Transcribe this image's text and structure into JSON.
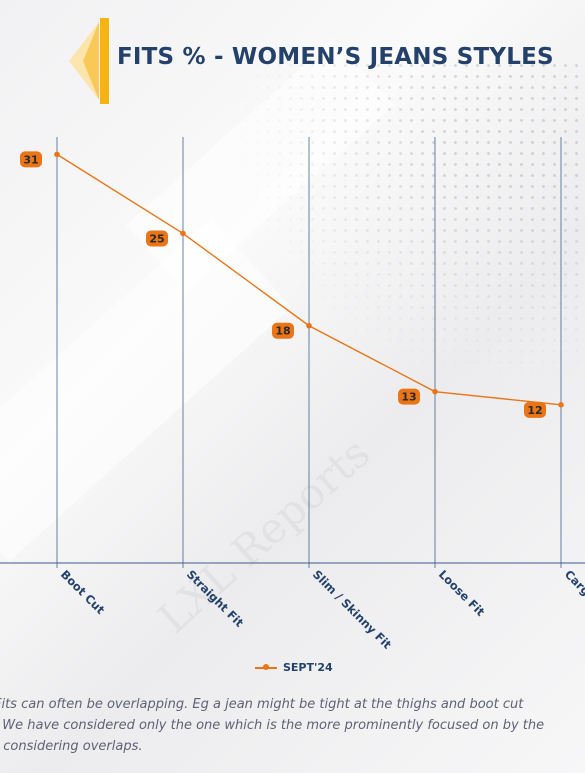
{
  "title": "FITS % - WOMEN’S JEANS STYLES",
  "chart_data": {
    "type": "line",
    "categories": [
      "Boot Cut",
      "Straight Fit",
      "Slim / Skinny Fit",
      "Loose Fit",
      "Cargo"
    ],
    "series": [
      {
        "name": "SEPT'24",
        "values": [
          31,
          25,
          18,
          13,
          12
        ],
        "color": "#ea7516"
      }
    ],
    "ylim": [
      0,
      33
    ],
    "grid": "vertical",
    "legend": "bottom",
    "title": "FITS % - WOMEN’S JEANS STYLES",
    "xlabel": "",
    "ylabel": ""
  },
  "legend": {
    "label": "SEPT'24"
  },
  "note": [
    "Fits can often be overlapping. Eg a jean might be tight at the thighs and boot cut",
    ". We have considered only the one which is the more prominently focused on by the",
    "t considering overlaps."
  ],
  "watermark": "LXL Reports",
  "colors": {
    "accent": "#ea7516",
    "title": "#23416b",
    "logo": "#f6b313",
    "grid": "#3d5a8c"
  }
}
